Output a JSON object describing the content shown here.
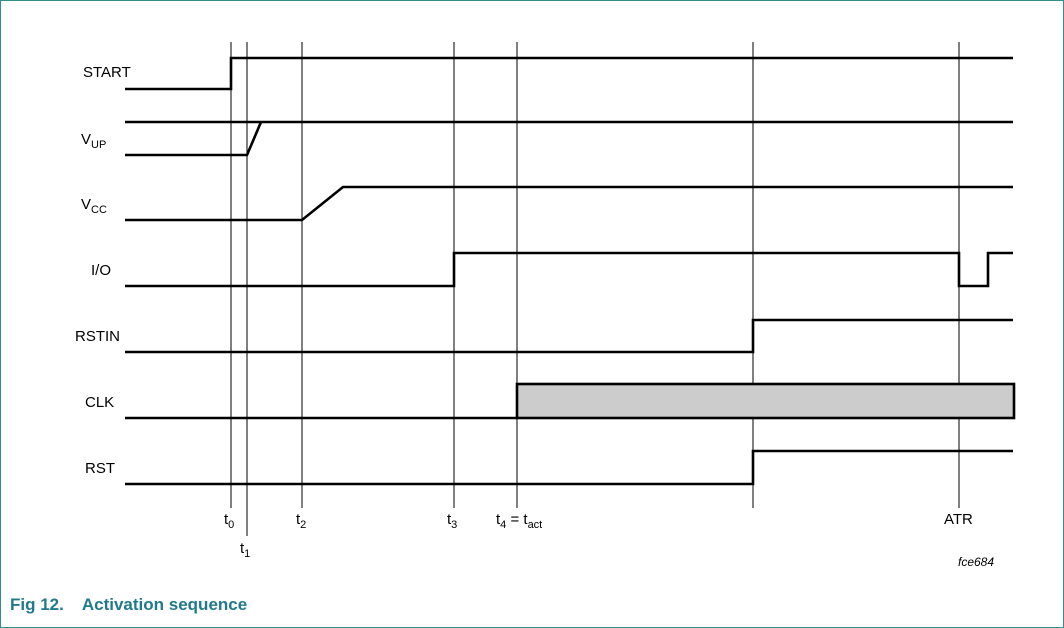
{
  "figure": {
    "tag": "fce684",
    "caption_number": "Fig 12.",
    "caption_title": "Activation sequence"
  },
  "signals": [
    {
      "id": "start",
      "name": "START",
      "sub": ""
    },
    {
      "id": "vup",
      "name": "V",
      "sub": "UP"
    },
    {
      "id": "vcc",
      "name": "V",
      "sub": "CC"
    },
    {
      "id": "io",
      "name": "I/O",
      "sub": ""
    },
    {
      "id": "rstin",
      "name": "RSTIN",
      "sub": ""
    },
    {
      "id": "clk",
      "name": "CLK",
      "sub": ""
    },
    {
      "id": "rst",
      "name": "RST",
      "sub": ""
    }
  ],
  "time_markers": [
    {
      "id": "t0",
      "name": "t",
      "sub": "0",
      "eq": "",
      "eqsub": ""
    },
    {
      "id": "t1",
      "name": "t",
      "sub": "1",
      "eq": "",
      "eqsub": ""
    },
    {
      "id": "t2",
      "name": "t",
      "sub": "2",
      "eq": "",
      "eqsub": ""
    },
    {
      "id": "t3",
      "name": "t",
      "sub": "3",
      "eq": "",
      "eqsub": ""
    },
    {
      "id": "t4",
      "name": "t",
      "sub": "4",
      "eq": " = t",
      "eqsub": "act"
    },
    {
      "id": "t5",
      "name": "",
      "sub": "",
      "eq": "",
      "eqsub": ""
    },
    {
      "id": "atr",
      "name": "ATR",
      "sub": "",
      "eq": "",
      "eqsub": ""
    }
  ],
  "colors": {
    "frame_border": "#2f8f8f",
    "caption": "#1f7a8c",
    "clock_fill": "#cccccc"
  }
}
